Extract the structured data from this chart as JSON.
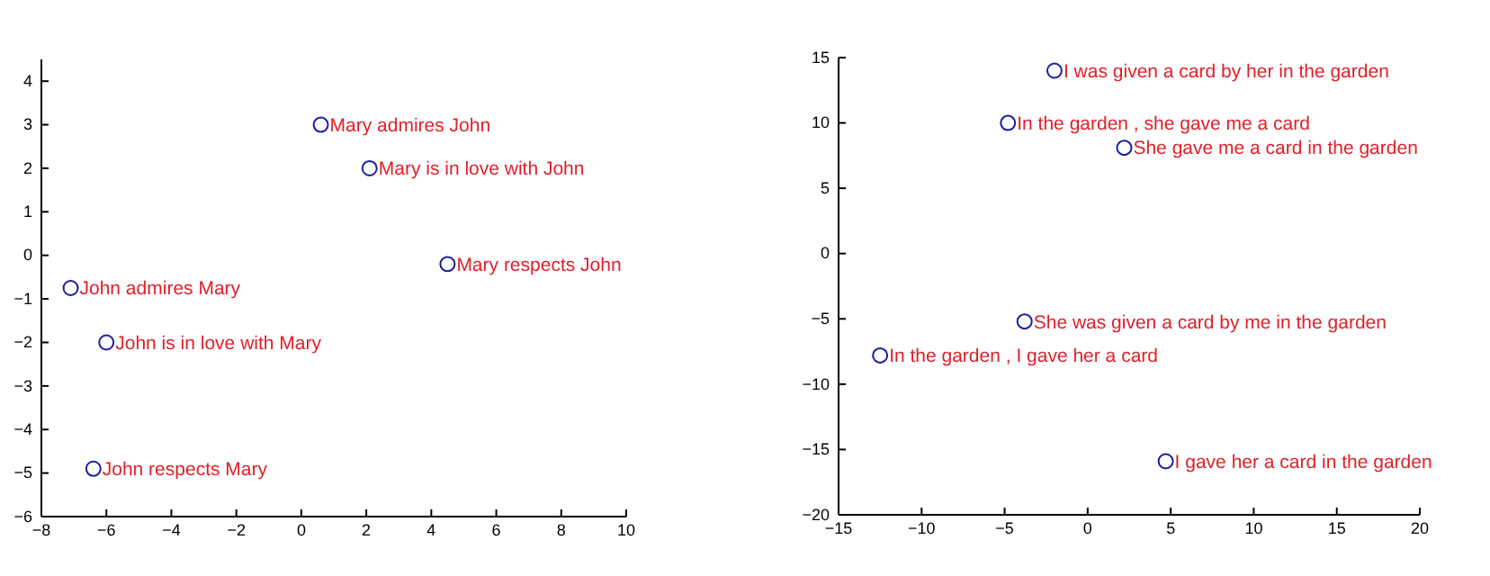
{
  "chart_data": [
    {
      "type": "scatter",
      "x": [
        0.6,
        2.1,
        4.5,
        -7.1,
        -6.0,
        -6.4
      ],
      "values": [
        3.0,
        2.0,
        -0.2,
        -0.75,
        -2.0,
        -4.9
      ],
      "color": "#1a1aa6",
      "marker": "circle",
      "xlim": [
        -8,
        10
      ],
      "ylim": [
        -6,
        4.5
      ],
      "xticks": [
        -8,
        -6,
        -4,
        -2,
        0,
        2,
        4,
        6,
        8,
        10
      ],
      "yticks": [
        -6,
        -5,
        -4,
        -3,
        -2,
        -1,
        0,
        1,
        2,
        3,
        4
      ],
      "annotations": [
        {
          "text": "Mary admires John",
          "x": 0.6,
          "y": 3.0
        },
        {
          "text": "Mary is in love with John",
          "x": 2.1,
          "y": 2.0
        },
        {
          "text": "Mary respects John",
          "x": 4.5,
          "y": -0.2
        },
        {
          "text": "John admires Mary",
          "x": -7.1,
          "y": -0.75
        },
        {
          "text": "John is in love with Mary",
          "x": -6.0,
          "y": -2.0
        },
        {
          "text": "John respects Mary",
          "x": -6.4,
          "y": -4.9
        }
      ]
    },
    {
      "type": "scatter",
      "x": [
        -2,
        -4.8,
        2.2,
        -3.8,
        -12.5,
        4.7
      ],
      "values": [
        14,
        10,
        8.1,
        -5.2,
        -7.8,
        -15.9
      ],
      "color": "#1a1aa6",
      "marker": "circle",
      "xlim": [
        -15,
        20
      ],
      "ylim": [
        -20,
        15
      ],
      "xticks": [
        -15,
        -10,
        -5,
        0,
        5,
        10,
        15,
        20
      ],
      "yticks": [
        -20,
        -15,
        -10,
        -5,
        0,
        5,
        10,
        15
      ],
      "annotations": [
        {
          "text": "I was given a card by her in the garden",
          "x": -2,
          "y": 14
        },
        {
          "text": "In the garden , she gave me a card",
          "x": -4.8,
          "y": 10
        },
        {
          "text": "She gave me a card in the garden",
          "x": 2.2,
          "y": 8.1
        },
        {
          "text": "She was given a card by me in the garden",
          "x": -3.8,
          "y": -5.2
        },
        {
          "text": "In the garden , I gave her a card",
          "x": -12.5,
          "y": -7.8
        },
        {
          "text": "I gave her a card in the garden",
          "x": 4.7,
          "y": -15.9
        }
      ]
    }
  ]
}
